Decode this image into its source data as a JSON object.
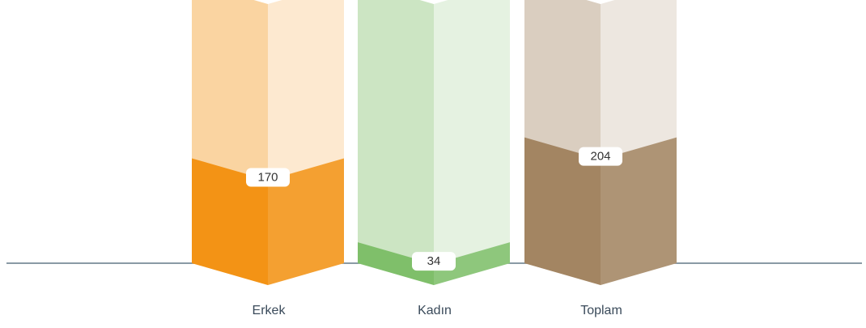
{
  "chart_data": {
    "type": "bar",
    "categories": [
      "Erkek",
      "Kadın",
      "Toplam"
    ],
    "values": [
      170,
      34,
      204
    ],
    "colors": [
      "#f39315",
      "#7fbf6a",
      "#a38562"
    ],
    "ylim": [
      0,
      420
    ]
  }
}
